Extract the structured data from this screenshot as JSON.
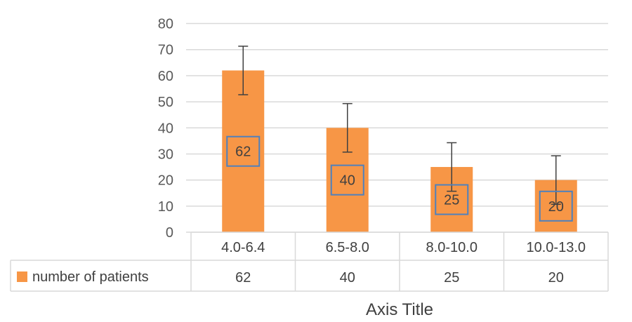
{
  "chart_data": {
    "type": "bar",
    "categories": [
      "4.0-6.4",
      "6.5-8.0",
      "8.0-10.0",
      "10.0-13.0"
    ],
    "series": [
      {
        "name": "number of patients",
        "values": [
          62,
          40,
          25,
          20
        ],
        "error_plus": [
          9.3,
          9.3,
          9.3,
          9.3
        ],
        "error_minus": [
          9.3,
          9.3,
          9.3,
          9.3
        ],
        "color": "#F79646"
      }
    ],
    "ylim": [
      0,
      80
    ],
    "yticks": [
      0,
      10,
      20,
      30,
      40,
      50,
      60,
      70,
      80
    ],
    "xlabel": "Axis Title",
    "grid": true,
    "data_table": true,
    "data_labels": true
  },
  "colors": {
    "bar": "#F79646",
    "gridline": "#D9D9D9",
    "error_bar": "#404040",
    "label_border": "#4F81BD"
  }
}
